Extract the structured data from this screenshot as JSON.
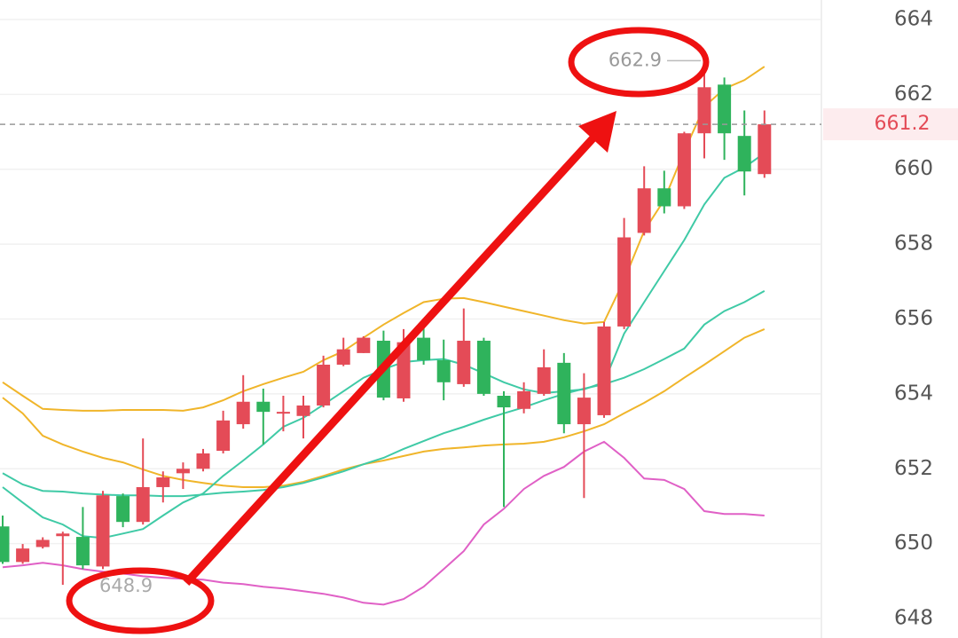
{
  "chart_data": {
    "type": "candlestick",
    "categories": [
      null,
      null,
      null,
      null,
      null,
      null,
      null,
      null,
      null,
      null,
      null,
      null,
      null,
      null,
      null,
      null,
      null,
      null,
      null,
      null,
      null,
      null,
      null,
      null,
      null,
      null,
      null,
      null,
      null,
      null,
      null,
      null,
      null,
      null,
      null,
      null,
      null,
      null,
      null
    ],
    "open": [
      650.46,
      649.51,
      649.91,
      650.2,
      650.18,
      649.39,
      651.27,
      650.58,
      651.51,
      651.88,
      652.0,
      652.48,
      653.19,
      653.79,
      653.48,
      653.41,
      653.69,
      654.78,
      655.09,
      655.42,
      653.88,
      655.5,
      654.9,
      654.26,
      655.42,
      653.95,
      653.6,
      654.0,
      654.83,
      653.19,
      653.43,
      655.8,
      658.3,
      659.49,
      659.01,
      660.96,
      662.26,
      660.89,
      659.87
    ],
    "high": [
      650.75,
      649.99,
      650.17,
      650.32,
      650.98,
      651.41,
      651.34,
      652.81,
      651.93,
      652.17,
      652.53,
      653.55,
      654.5,
      654.14,
      653.95,
      653.95,
      655.02,
      655.5,
      655.54,
      655.69,
      655.73,
      655.97,
      655.45,
      656.28,
      655.5,
      654.07,
      654.31,
      655.19,
      655.09,
      654.55,
      655.92,
      658.7,
      660.08,
      659.96,
      661.0,
      662.9,
      662.45,
      661.57,
      661.57
    ],
    "low": [
      649.46,
      649.46,
      649.87,
      648.9,
      649.32,
      649.32,
      650.44,
      650.51,
      651.1,
      651.46,
      651.93,
      652.41,
      653.07,
      652.65,
      653.0,
      652.81,
      653.64,
      654.74,
      655.09,
      653.83,
      653.79,
      654.78,
      653.83,
      654.19,
      653.95,
      650.98,
      653.48,
      653.95,
      652.95,
      651.22,
      653.36,
      655.73,
      658.23,
      658.82,
      658.94,
      660.29,
      660.25,
      659.3,
      659.77
    ],
    "close": [
      649.51,
      649.87,
      650.1,
      650.27,
      649.42,
      651.29,
      650.58,
      651.51,
      651.77,
      652.0,
      652.41,
      653.29,
      653.79,
      653.52,
      653.52,
      653.69,
      654.78,
      655.19,
      655.5,
      653.9,
      655.38,
      654.9,
      654.31,
      655.42,
      654.0,
      653.64,
      654.07,
      654.71,
      653.19,
      653.9,
      655.8,
      658.18,
      659.49,
      659.01,
      660.96,
      662.19,
      660.96,
      659.94,
      661.2
    ],
    "up_color": "#e44b57",
    "down_color": "#2fb35c",
    "lines": [
      {
        "color": "#f0b52a",
        "values": [
          654.31,
          653.95,
          653.6,
          653.57,
          653.55,
          653.55,
          653.57,
          653.57,
          653.57,
          653.55,
          653.64,
          653.83,
          654.07,
          654.26,
          654.43,
          654.59,
          654.9,
          655.14,
          655.5,
          655.85,
          656.16,
          656.45,
          656.54,
          656.56,
          656.45,
          656.33,
          656.21,
          656.09,
          655.97,
          655.88,
          655.92,
          657.04,
          658.35,
          659.18,
          660.48,
          661.67,
          662.15,
          662.38,
          662.74
        ]
      },
      {
        "color": "#f0b52a",
        "values": [
          653.9,
          653.48,
          652.88,
          652.65,
          652.46,
          652.29,
          652.17,
          651.98,
          651.81,
          651.7,
          651.62,
          651.55,
          651.51,
          651.51,
          651.55,
          651.65,
          651.81,
          651.98,
          652.12,
          652.22,
          652.34,
          652.46,
          652.53,
          652.57,
          652.62,
          652.65,
          652.67,
          652.72,
          652.84,
          653.0,
          653.19,
          653.48,
          653.76,
          654.07,
          654.43,
          654.78,
          655.14,
          655.5,
          655.73
        ]
      },
      {
        "color": "#3fcaa6",
        "values": [
          651.88,
          651.58,
          651.41,
          651.39,
          651.34,
          651.31,
          651.29,
          651.29,
          651.27,
          651.27,
          651.31,
          651.36,
          651.39,
          651.43,
          651.51,
          651.62,
          651.77,
          651.93,
          652.12,
          652.29,
          652.53,
          652.74,
          652.95,
          653.12,
          653.31,
          653.48,
          653.64,
          653.83,
          654.0,
          654.14,
          654.26,
          654.43,
          654.66,
          654.93,
          655.21,
          655.85,
          656.21,
          656.45,
          656.75
        ]
      },
      {
        "color": "#3fcaa6",
        "values": [
          651.51,
          651.1,
          650.7,
          650.51,
          650.2,
          650.15,
          650.27,
          650.39,
          650.75,
          651.1,
          651.34,
          651.81,
          652.22,
          652.65,
          653.12,
          653.36,
          653.71,
          654.07,
          654.43,
          654.66,
          654.85,
          654.9,
          654.93,
          654.78,
          654.55,
          654.31,
          654.12,
          654.02,
          654.07,
          654.12,
          654.31,
          655.61,
          656.45,
          657.28,
          658.11,
          659.06,
          659.77,
          660.05,
          660.43
        ]
      },
      {
        "color": "#e060c6",
        "values": [
          649.37,
          649.42,
          649.49,
          649.42,
          649.32,
          649.25,
          649.2,
          649.13,
          649.09,
          649.06,
          649.04,
          648.96,
          648.92,
          648.85,
          648.8,
          648.73,
          648.66,
          648.56,
          648.42,
          648.37,
          648.52,
          648.85,
          649.32,
          649.8,
          650.51,
          650.93,
          651.46,
          651.81,
          652.05,
          652.46,
          652.72,
          652.29,
          651.74,
          651.7,
          651.46,
          650.87,
          650.79,
          650.79,
          650.75
        ]
      }
    ],
    "ylim": [
      647.48,
      664.52
    ],
    "yticks": [
      648,
      650,
      652,
      654,
      656,
      658,
      660,
      662,
      664
    ],
    "grid": true,
    "current_price": 661.2,
    "high_marker": 662.9,
    "low_marker": 648.9
  }
}
